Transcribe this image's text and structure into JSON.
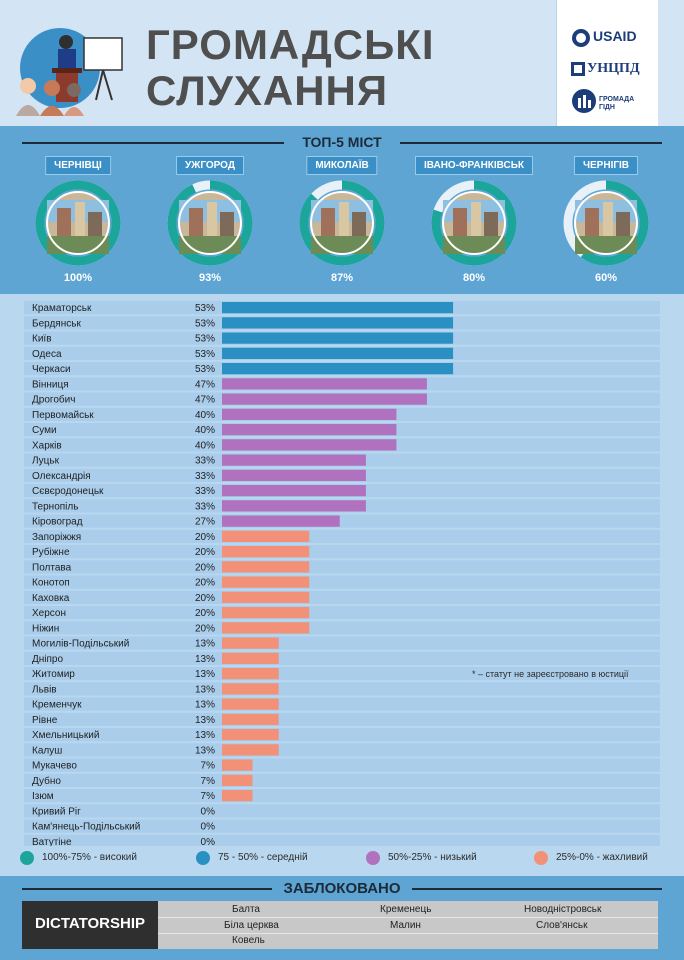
{
  "header": {
    "title_line1": "ГРОМАДСЬКІ",
    "title_line2": "СЛУХАННЯ",
    "logos": {
      "usaid": "USAID",
      "uncp": "УНЦПД",
      "ggd": "ГРОМАДА ГІДН"
    }
  },
  "top5": {
    "title": "ТОП-5 МІСТ",
    "cities": [
      {
        "name": "ЧЕРНІВЦІ",
        "percent_label": "100%",
        "value": 100
      },
      {
        "name": "УЖГОРОД",
        "percent_label": "93%",
        "value": 93
      },
      {
        "name": "МИКОЛАЇВ",
        "percent_label": "87%",
        "value": 87
      },
      {
        "name": "ІВАНО-ФРАНКІВСЬК",
        "percent_label": "80%",
        "value": 80
      },
      {
        "name": "ЧЕРНІГІВ",
        "percent_label": "60%",
        "value": 60
      }
    ]
  },
  "chart_data": {
    "type": "bar",
    "orientation": "horizontal",
    "xlim": [
      0,
      100
    ],
    "categories": [
      "Краматорськ",
      "Бердянськ",
      "Київ",
      "Одеса",
      "Черкаси",
      "Вінниця",
      "Дрогобич",
      "Первомайськ",
      "Суми",
      "Харків",
      "Луцьк",
      "Олександрія",
      "Сєвєродонецьк",
      "Тернопіль",
      "Кіровоград",
      "Запоріжжя",
      "Рубіжне",
      "Полтава",
      "Конотоп",
      "Каховка",
      "Херсон",
      "Ніжин",
      "Могилів-Подільський",
      "Дніпро",
      "Житомир",
      "Львів",
      "Кременчук",
      "Рівне",
      "Хмельницький",
      "Калуш",
      "Мукачево",
      "Дубно",
      "Ізюм",
      "Кривий Ріг",
      "Кам'янець-Подільський",
      "Ватутіне"
    ],
    "values": [
      53,
      53,
      53,
      53,
      53,
      47,
      47,
      40,
      40,
      40,
      33,
      33,
      33,
      33,
      27,
      20,
      20,
      20,
      20,
      20,
      20,
      20,
      13,
      13,
      13,
      13,
      13,
      13,
      13,
      13,
      7,
      7,
      7,
      0,
      0,
      0
    ],
    "value_labels": [
      "53%",
      "53%",
      "53%",
      "53%",
      "53%",
      "47%",
      "47%",
      "40%",
      "40%",
      "40%",
      "33%",
      "33%",
      "33%",
      "33%",
      "27%",
      "20%",
      "20%",
      "20%",
      "20%",
      "20%",
      "20%",
      "20%",
      "13%",
      "13%",
      "13%",
      "13%",
      "13%",
      "13%",
      "13%",
      "13%",
      "7%",
      "7%",
      "7%",
      "0%",
      "0%",
      "0%"
    ],
    "categories_color_group": [
      "medium",
      "medium",
      "medium",
      "medium",
      "medium",
      "low",
      "low",
      "low",
      "low",
      "low",
      "low",
      "low",
      "low",
      "low",
      "low",
      "bad",
      "bad",
      "bad",
      "bad",
      "bad",
      "bad",
      "bad",
      "bad",
      "bad",
      "bad",
      "bad",
      "bad",
      "bad",
      "bad",
      "bad",
      "bad",
      "bad",
      "bad",
      "bad",
      "bad",
      "bad"
    ],
    "colors": {
      "high": "#1ba59b",
      "medium": "#2a90c4",
      "low": "#b071be",
      "bad": "#f29177",
      "track": "#a9cdea"
    },
    "legend": [
      {
        "label": "100%-75% - високий",
        "color": "#1ba59b"
      },
      {
        "label": "75 - 50% - середній",
        "color": "#2a90c4"
      },
      {
        "label": "50%-25% - низький",
        "color": "#b071be"
      },
      {
        "label": "25%-0% - жахливий",
        "color": "#f29177"
      }
    ],
    "footnote": "* – статут не зареєстровано в юстиції"
  },
  "blocked": {
    "title": "ЗАБЛОКОВАНО",
    "label": "DICTATORSHIP",
    "cities": {
      "col1": [
        "Балта",
        "Біла церква",
        "Ковель"
      ],
      "col2": [
        "Кременець",
        "Малин"
      ],
      "col3": [
        "Новодністровськ",
        "Слов'янськ"
      ]
    }
  }
}
